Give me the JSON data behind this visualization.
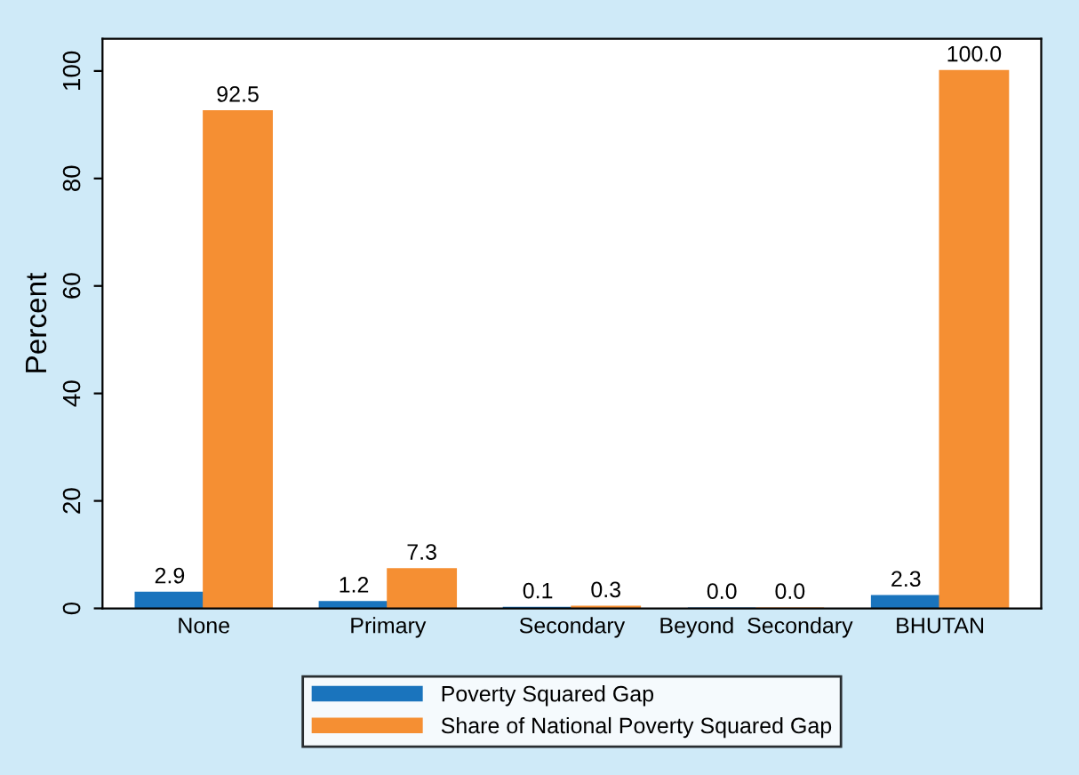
{
  "chart_data": {
    "type": "bar",
    "ylabel": "Percent",
    "categories": [
      "None",
      "Primary",
      "Secondary",
      "Beyond  Secondary",
      "BHUTAN"
    ],
    "series": [
      {
        "name": "Poverty Squared Gap",
        "color": "#1a74bd",
        "values": [
          2.9,
          1.2,
          0.1,
          0.0,
          2.3
        ],
        "value_labels": [
          "2.9",
          "1.2",
          "0.1",
          "0.0",
          "2.3"
        ]
      },
      {
        "name": "Share of National Poverty Squared Gap",
        "color": "#f58f33",
        "values": [
          92.5,
          7.3,
          0.3,
          0.0,
          100.0
        ],
        "value_labels": [
          "92.5",
          "7.3",
          "0.3",
          "0.0",
          "100.0"
        ]
      }
    ],
    "ylim": [
      0,
      106
    ],
    "yticks": [
      0,
      20,
      40,
      60,
      80,
      100
    ],
    "grid": false,
    "legend": "bottom"
  }
}
